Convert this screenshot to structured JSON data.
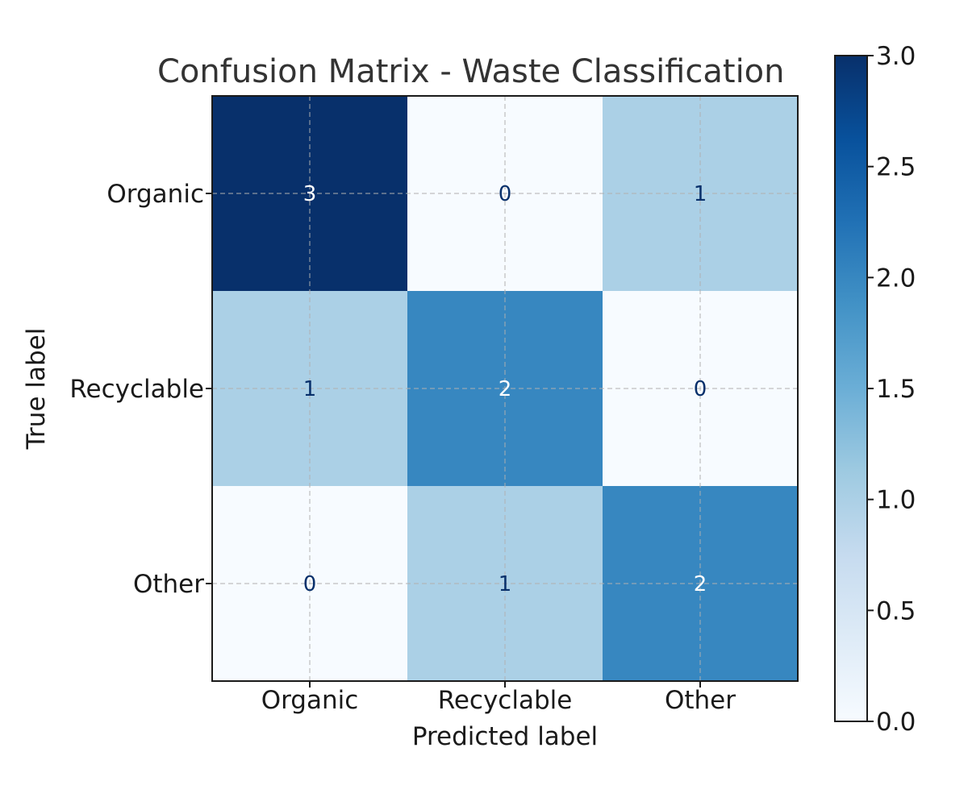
{
  "chart_data": {
    "type": "heatmap",
    "title": "Confusion Matrix - Waste Classification",
    "xlabel": "Predicted label",
    "ylabel": "True label",
    "x_categories": [
      "Organic",
      "Recyclable",
      "Other"
    ],
    "y_categories": [
      "Organic",
      "Recyclable",
      "Other"
    ],
    "matrix": [
      [
        3,
        0,
        1
      ],
      [
        1,
        2,
        0
      ],
      [
        0,
        1,
        2
      ]
    ],
    "colorbar": {
      "range": [
        0,
        3
      ],
      "ticks": [
        "0.0",
        "0.5",
        "1.0",
        "1.5",
        "2.0",
        "2.5",
        "3.0"
      ],
      "colormap": "Blues"
    },
    "grid": true,
    "colors": {
      "low": "#f7fbff",
      "high": "#08306b",
      "text_on_light": "#08306b",
      "text_on_dark": "#ffffff",
      "axis": "#1a1a1a",
      "title": "#333333"
    }
  }
}
